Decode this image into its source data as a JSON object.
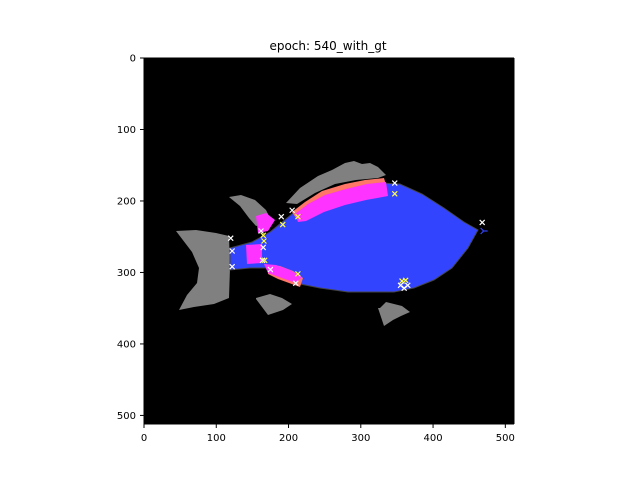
{
  "chart_data": {
    "type": "image",
    "title": "epoch: 540_with_gt",
    "xlabel": "",
    "ylabel": "",
    "xlim": [
      0,
      512
    ],
    "ylim": [
      512,
      0
    ],
    "xticks": [
      0,
      100,
      200,
      300,
      400,
      500
    ],
    "yticks": [
      0,
      100,
      200,
      300,
      400,
      500
    ],
    "xtick_labels": [
      "0",
      "100",
      "200",
      "300",
      "400",
      "500"
    ],
    "ytick_labels": [
      "0",
      "100",
      "200",
      "300",
      "400",
      "500"
    ],
    "background_color": "#000000",
    "segments": [
      {
        "name": "fins-gray",
        "color": "#808080"
      },
      {
        "name": "body-blue",
        "color": "#3344ff"
      },
      {
        "name": "highlight-magenta",
        "color": "#ff33ff"
      },
      {
        "name": "outline-salmon",
        "color": "#ff7766"
      }
    ],
    "keypoints_white": [
      [
        120,
        252
      ],
      [
        122,
        270
      ],
      [
        122,
        292
      ],
      [
        162,
        242
      ],
      [
        165,
        265
      ],
      [
        164,
        283
      ],
      [
        190,
        222
      ],
      [
        205,
        213
      ],
      [
        175,
        296
      ],
      [
        210,
        315
      ],
      [
        347,
        175
      ],
      [
        355,
        318
      ],
      [
        360,
        322
      ],
      [
        365,
        318
      ],
      [
        468,
        230
      ]
    ],
    "keypoints_yellow": [
      [
        165,
        248
      ],
      [
        166,
        256
      ],
      [
        192,
        233
      ],
      [
        213,
        222
      ],
      [
        167,
        283
      ],
      [
        213,
        302
      ],
      [
        347,
        190
      ],
      [
        357,
        312
      ],
      [
        362,
        311
      ]
    ],
    "keypoints_blue": [
      [
        470,
        242
      ]
    ],
    "colors": {
      "white_marker": "#ffffff",
      "yellow_marker": "#ffff44",
      "blue_marker": "#3344ff"
    }
  }
}
